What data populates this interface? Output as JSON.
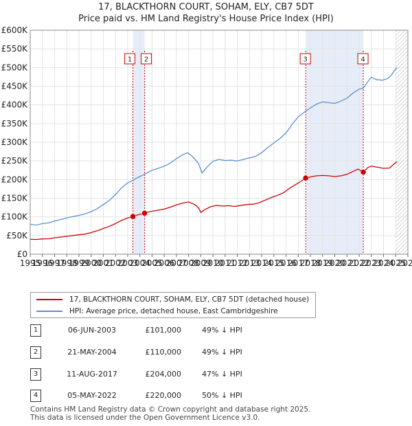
{
  "title_line1": "17, BLACKTHORN COURT, SOHAM, ELY, CB7 5DT",
  "title_line2": "Price paid vs. HM Land Registry's House Price Index (HPI)",
  "chart_data": {
    "type": "line",
    "title": "17, BLACKTHORN COURT, SOHAM, ELY, CB7 5DT — Price paid vs. HM Land Registry's House Price Index (HPI)",
    "xlabel": "",
    "ylabel": "",
    "xlim": [
      1995,
      2026
    ],
    "ylim": [
      0,
      600000
    ],
    "y_ticks": [
      {
        "value": 0,
        "label": "£0"
      },
      {
        "value": 50000,
        "label": "£50K"
      },
      {
        "value": 100000,
        "label": "£100K"
      },
      {
        "value": 150000,
        "label": "£150K"
      },
      {
        "value": 200000,
        "label": "£200K"
      },
      {
        "value": 250000,
        "label": "£250K"
      },
      {
        "value": 300000,
        "label": "£300K"
      },
      {
        "value": 350000,
        "label": "£350K"
      },
      {
        "value": 400000,
        "label": "£400K"
      },
      {
        "value": 450000,
        "label": "£450K"
      },
      {
        "value": 500000,
        "label": "£500K"
      },
      {
        "value": 550000,
        "label": "£550K"
      },
      {
        "value": 600000,
        "label": "£600K"
      }
    ],
    "x_ticks": [
      "1995",
      "1996",
      "1997",
      "1998",
      "1999",
      "2000",
      "2001",
      "2002",
      "2003",
      "2004",
      "2005",
      "2006",
      "2007",
      "2008",
      "2009",
      "2010",
      "2011",
      "2012",
      "2013",
      "2014",
      "2015",
      "2016",
      "2017",
      "2018",
      "2019",
      "2020",
      "2021",
      "2022",
      "2023",
      "2024",
      "2025",
      "2026"
    ],
    "shaded_ranges": [
      [
        2003.43,
        2004.39
      ],
      [
        2017.61,
        2022.34
      ]
    ],
    "future_hatch_from": 2025.0,
    "series": [
      {
        "name": "17, BLACKTHORN COURT, SOHAM, ELY, CB7 5DT (detached house)",
        "color": "#cc0000",
        "points": [
          [
            1995.0,
            40000
          ],
          [
            1995.5,
            39500
          ],
          [
            1996.0,
            41000
          ],
          [
            1996.5,
            41500
          ],
          [
            1997.0,
            44000
          ],
          [
            1997.5,
            46000
          ],
          [
            1998.0,
            48000
          ],
          [
            1998.5,
            50000
          ],
          [
            1999.0,
            52000
          ],
          [
            1999.5,
            54000
          ],
          [
            2000.0,
            58000
          ],
          [
            2000.5,
            63000
          ],
          [
            2001.0,
            69000
          ],
          [
            2001.5,
            75000
          ],
          [
            2002.0,
            82000
          ],
          [
            2002.5,
            91000
          ],
          [
            2003.0,
            97000
          ],
          [
            2003.43,
            101000
          ],
          [
            2003.8,
            105000
          ],
          [
            2004.39,
            110000
          ],
          [
            2004.8,
            114000
          ],
          [
            2005.0,
            115000
          ],
          [
            2005.5,
            118000
          ],
          [
            2006.0,
            121000
          ],
          [
            2006.5,
            126000
          ],
          [
            2007.0,
            132000
          ],
          [
            2007.5,
            137000
          ],
          [
            2008.0,
            140000
          ],
          [
            2008.5,
            133000
          ],
          [
            2008.8,
            125000
          ],
          [
            2009.0,
            112000
          ],
          [
            2009.3,
            119000
          ],
          [
            2009.8,
            127000
          ],
          [
            2010.3,
            131000
          ],
          [
            2010.8,
            129000
          ],
          [
            2011.3,
            130000
          ],
          [
            2011.8,
            128000
          ],
          [
            2012.3,
            131000
          ],
          [
            2012.8,
            133000
          ],
          [
            2013.3,
            134000
          ],
          [
            2013.8,
            138000
          ],
          [
            2014.3,
            145000
          ],
          [
            2014.8,
            152000
          ],
          [
            2015.3,
            158000
          ],
          [
            2015.8,
            165000
          ],
          [
            2016.3,
            177000
          ],
          [
            2016.8,
            187000
          ],
          [
            2017.3,
            197000
          ],
          [
            2017.61,
            204000
          ],
          [
            2018.0,
            207000
          ],
          [
            2018.5,
            210000
          ],
          [
            2019.0,
            211000
          ],
          [
            2019.5,
            210000
          ],
          [
            2020.0,
            208000
          ],
          [
            2020.5,
            210000
          ],
          [
            2021.0,
            214000
          ],
          [
            2021.5,
            222000
          ],
          [
            2021.9,
            228000
          ],
          [
            2022.34,
            220000
          ],
          [
            2022.7,
            232000
          ],
          [
            2023.0,
            236000
          ],
          [
            2023.5,
            233000
          ],
          [
            2024.0,
            230000
          ],
          [
            2024.5,
            231000
          ],
          [
            2024.8,
            240000
          ],
          [
            2025.1,
            248000
          ]
        ]
      },
      {
        "name": "HPI: Average price, detached house, East Cambridgeshire",
        "color": "#5b8ecf",
        "points": [
          [
            1995.0,
            80000
          ],
          [
            1995.5,
            78000
          ],
          [
            1996.0,
            82000
          ],
          [
            1996.5,
            84000
          ],
          [
            1997.0,
            89000
          ],
          [
            1997.5,
            93000
          ],
          [
            1998.0,
            97000
          ],
          [
            1998.5,
            101000
          ],
          [
            1999.0,
            104000
          ],
          [
            1999.5,
            108000
          ],
          [
            2000.0,
            114000
          ],
          [
            2000.5,
            122000
          ],
          [
            2001.0,
            133000
          ],
          [
            2001.5,
            144000
          ],
          [
            2002.0,
            160000
          ],
          [
            2002.5,
            178000
          ],
          [
            2003.0,
            191000
          ],
          [
            2003.43,
            198000
          ],
          [
            2003.8,
            205000
          ],
          [
            2004.39,
            214000
          ],
          [
            2004.8,
            222000
          ],
          [
            2005.0,
            225000
          ],
          [
            2005.5,
            230000
          ],
          [
            2006.0,
            236000
          ],
          [
            2006.5,
            244000
          ],
          [
            2007.0,
            256000
          ],
          [
            2007.5,
            266000
          ],
          [
            2007.9,
            272000
          ],
          [
            2008.3,
            262000
          ],
          [
            2008.8,
            244000
          ],
          [
            2009.1,
            218000
          ],
          [
            2009.5,
            233000
          ],
          [
            2010.0,
            249000
          ],
          [
            2010.5,
            254000
          ],
          [
            2011.0,
            251000
          ],
          [
            2011.5,
            252000
          ],
          [
            2012.0,
            250000
          ],
          [
            2012.5,
            254000
          ],
          [
            2013.0,
            258000
          ],
          [
            2013.5,
            262000
          ],
          [
            2014.0,
            272000
          ],
          [
            2014.5,
            286000
          ],
          [
            2015.0,
            298000
          ],
          [
            2015.5,
            310000
          ],
          [
            2016.0,
            325000
          ],
          [
            2016.5,
            348000
          ],
          [
            2017.0,
            368000
          ],
          [
            2017.61,
            383000
          ],
          [
            2018.0,
            392000
          ],
          [
            2018.5,
            402000
          ],
          [
            2019.0,
            408000
          ],
          [
            2019.5,
            406000
          ],
          [
            2020.0,
            404000
          ],
          [
            2020.5,
            410000
          ],
          [
            2021.0,
            418000
          ],
          [
            2021.5,
            432000
          ],
          [
            2022.0,
            442000
          ],
          [
            2022.34,
            445000
          ],
          [
            2022.7,
            462000
          ],
          [
            2023.0,
            474000
          ],
          [
            2023.4,
            468000
          ],
          [
            2023.9,
            466000
          ],
          [
            2024.3,
            470000
          ],
          [
            2024.6,
            478000
          ],
          [
            2024.9,
            492000
          ],
          [
            2025.1,
            500000
          ]
        ]
      }
    ],
    "sales": [
      {
        "label": "1",
        "x": 2003.43,
        "y": 101000
      },
      {
        "label": "2",
        "x": 2004.39,
        "y": 110000
      },
      {
        "label": "3",
        "x": 2017.61,
        "y": 204000
      },
      {
        "label": "4",
        "x": 2022.34,
        "y": 220000
      }
    ]
  },
  "legend": {
    "property": "17, BLACKTHORN COURT, SOHAM, ELY, CB7 5DT (detached house)",
    "hpi": "HPI: Average price, detached house, East Cambridgeshire",
    "property_color": "#cc0000",
    "hpi_color": "#5b8ecf"
  },
  "sales_table": [
    {
      "num": "1",
      "date": "06-JUN-2003",
      "price": "£101,000",
      "hpi": "49% ↓ HPI"
    },
    {
      "num": "2",
      "date": "21-MAY-2004",
      "price": "£110,000",
      "hpi": "49% ↓ HPI"
    },
    {
      "num": "3",
      "date": "11-AUG-2017",
      "price": "£204,000",
      "hpi": "47% ↓ HPI"
    },
    {
      "num": "4",
      "date": "05-MAY-2022",
      "price": "£220,000",
      "hpi": "50% ↓ HPI"
    }
  ],
  "footer_line1": "Contains HM Land Registry data © Crown copyright and database right 2025.",
  "footer_line2": "This data is licensed under the Open Government Licence v3.0."
}
